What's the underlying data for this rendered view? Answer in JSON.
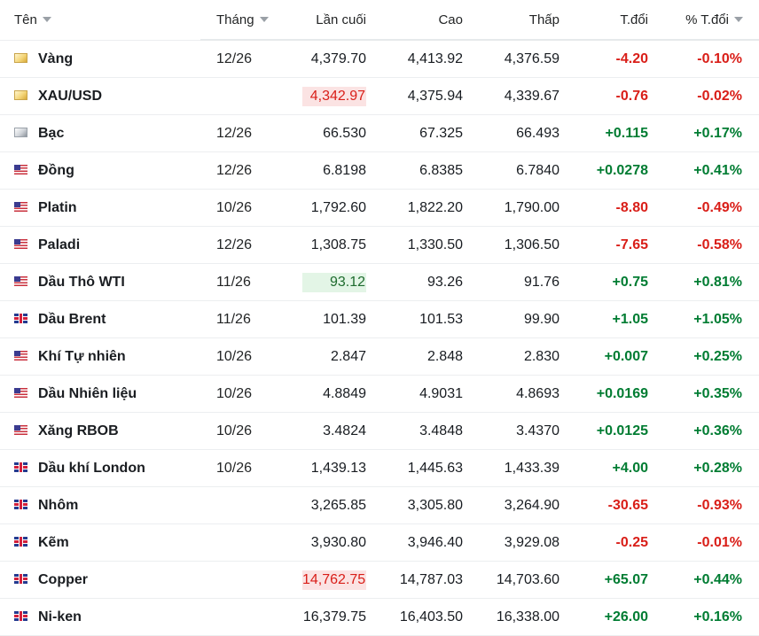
{
  "headers": {
    "name": "Tên",
    "month": "Tháng",
    "last": "Lần cuối",
    "high": "Cao",
    "low": "Thấp",
    "change": "T.đổi",
    "change_pct": "% T.đổi"
  },
  "colors": {
    "negative": "#d91e18",
    "positive": "#007c32",
    "highlight_down_bg": "#fbe3e3",
    "highlight_up_bg": "#e3f5e6"
  },
  "rows": [
    {
      "flag": "gold-icon",
      "name": "Vàng",
      "month": "12/26",
      "last": "4,379.70",
      "highlight": "",
      "high": "4,413.92",
      "low": "4,376.59",
      "change": "-4.20",
      "change_pct": "-0.10%",
      "dir": "neg"
    },
    {
      "flag": "gold-icon",
      "name": "XAU/USD",
      "month": "",
      "last": "4,342.97",
      "highlight": "red",
      "high": "4,375.94",
      "low": "4,339.67",
      "change": "-0.76",
      "change_pct": "-0.02%",
      "dir": "neg"
    },
    {
      "flag": "silver-icon",
      "name": "Bạc",
      "month": "12/26",
      "last": "66.530",
      "highlight": "",
      "high": "67.325",
      "low": "66.493",
      "change": "+0.115",
      "change_pct": "+0.17%",
      "dir": "pos"
    },
    {
      "flag": "us-flag-icon",
      "name": "Đồng",
      "month": "12/26",
      "last": "6.8198",
      "highlight": "",
      "high": "6.8385",
      "low": "6.7840",
      "change": "+0.0278",
      "change_pct": "+0.41%",
      "dir": "pos"
    },
    {
      "flag": "us-flag-icon",
      "name": "Platin",
      "month": "10/26",
      "last": "1,792.60",
      "highlight": "",
      "high": "1,822.20",
      "low": "1,790.00",
      "change": "-8.80",
      "change_pct": "-0.49%",
      "dir": "neg"
    },
    {
      "flag": "us-flag-icon",
      "name": "Paladi",
      "month": "12/26",
      "last": "1,308.75",
      "highlight": "",
      "high": "1,330.50",
      "low": "1,306.50",
      "change": "-7.65",
      "change_pct": "-0.58%",
      "dir": "neg"
    },
    {
      "flag": "us-flag-icon",
      "name": "Dầu Thô WTI",
      "month": "11/26",
      "last": "93.12",
      "highlight": "green",
      "high": "93.26",
      "low": "91.76",
      "change": "+0.75",
      "change_pct": "+0.81%",
      "dir": "pos"
    },
    {
      "flag": "uk-flag-icon",
      "name": "Dầu Brent",
      "month": "11/26",
      "last": "101.39",
      "highlight": "",
      "high": "101.53",
      "low": "99.90",
      "change": "+1.05",
      "change_pct": "+1.05%",
      "dir": "pos"
    },
    {
      "flag": "us-flag-icon",
      "name": "Khí Tự nhiên",
      "month": "10/26",
      "last": "2.847",
      "highlight": "",
      "high": "2.848",
      "low": "2.830",
      "change": "+0.007",
      "change_pct": "+0.25%",
      "dir": "pos"
    },
    {
      "flag": "us-flag-icon",
      "name": "Dầu Nhiên liệu",
      "month": "10/26",
      "last": "4.8849",
      "highlight": "",
      "high": "4.9031",
      "low": "4.8693",
      "change": "+0.0169",
      "change_pct": "+0.35%",
      "dir": "pos"
    },
    {
      "flag": "us-flag-icon",
      "name": "Xăng RBOB",
      "month": "10/26",
      "last": "3.4824",
      "highlight": "",
      "high": "3.4848",
      "low": "3.4370",
      "change": "+0.0125",
      "change_pct": "+0.36%",
      "dir": "pos"
    },
    {
      "flag": "uk-flag-icon",
      "name": "Dầu khí London",
      "month": "10/26",
      "last": "1,439.13",
      "highlight": "",
      "high": "1,445.63",
      "low": "1,433.39",
      "change": "+4.00",
      "change_pct": "+0.28%",
      "dir": "pos"
    },
    {
      "flag": "uk-flag-icon",
      "name": "Nhôm",
      "month": "",
      "last": "3,265.85",
      "highlight": "",
      "high": "3,305.80",
      "low": "3,264.90",
      "change": "-30.65",
      "change_pct": "-0.93%",
      "dir": "neg"
    },
    {
      "flag": "uk-flag-icon",
      "name": "Kẽm",
      "month": "",
      "last": "3,930.80",
      "highlight": "",
      "high": "3,946.40",
      "low": "3,929.08",
      "change": "-0.25",
      "change_pct": "-0.01%",
      "dir": "neg"
    },
    {
      "flag": "uk-flag-icon",
      "name": "Copper",
      "month": "",
      "last": "14,762.75",
      "highlight": "red",
      "high": "14,787.03",
      "low": "14,703.60",
      "change": "+65.07",
      "change_pct": "+0.44%",
      "dir": "pos"
    },
    {
      "flag": "uk-flag-icon",
      "name": "Ni-ken",
      "month": "",
      "last": "16,379.75",
      "highlight": "",
      "high": "16,403.50",
      "low": "16,338.00",
      "change": "+26.00",
      "change_pct": "+0.16%",
      "dir": "pos"
    }
  ]
}
